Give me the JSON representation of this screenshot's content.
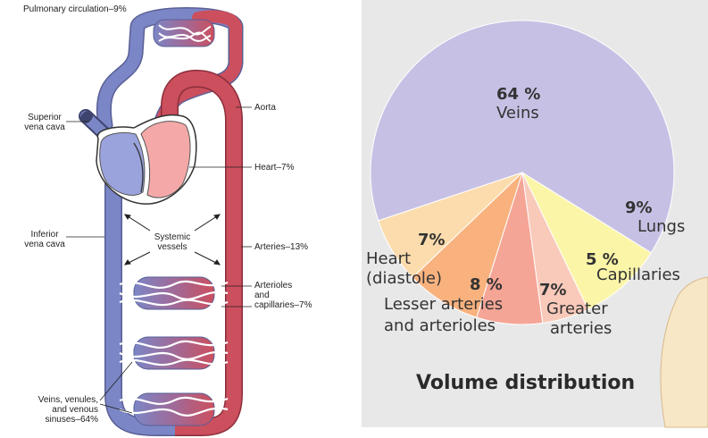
{
  "diagram": {
    "labels": {
      "pulmonary": "Pulmonary circulation–9%",
      "aorta": "Aorta",
      "superior_vc": [
        "Superior",
        "vena cava"
      ],
      "heart": "Heart–7%",
      "inferior_vc": [
        "Inferior",
        "vena cava"
      ],
      "systemic": [
        "Systemic",
        "vessels"
      ],
      "arteries": "Arteries–13%",
      "arterioles": [
        "Arterioles",
        "and",
        "capillaries–7%"
      ],
      "veins": [
        "Veins, venules,",
        "and venous",
        "sinuses–64%"
      ]
    },
    "colors": {
      "venous": "#7b86c6",
      "arterial": "#cc4f5e",
      "heart_right": "#9aa3dc",
      "heart_left": "#f4a9a8"
    }
  },
  "chart_data": {
    "type": "pie",
    "title": "Volume distribution",
    "slices": [
      {
        "pct": "64 %",
        "name": "Veins",
        "value": 64,
        "color": "#c6c1e4"
      },
      {
        "pct": "9%",
        "name": "Lungs",
        "value": 9,
        "color": "#fbf5a8"
      },
      {
        "pct": "5 %",
        "name": "Capillaries",
        "value": 5,
        "color": "#f9c9ba"
      },
      {
        "pct": "7%",
        "name_lines": [
          "Greater",
          "arteries"
        ],
        "value": 7,
        "color": "#f5a596"
      },
      {
        "pct": "8 %",
        "name_lines": [
          "Lesser arteries",
          "and arterioles"
        ],
        "value": 8,
        "color": "#f9b27e"
      },
      {
        "pct": "7%",
        "name_lines": [
          "Heart",
          "(diastole)"
        ],
        "value": 7,
        "color": "#fcdcad"
      }
    ]
  }
}
